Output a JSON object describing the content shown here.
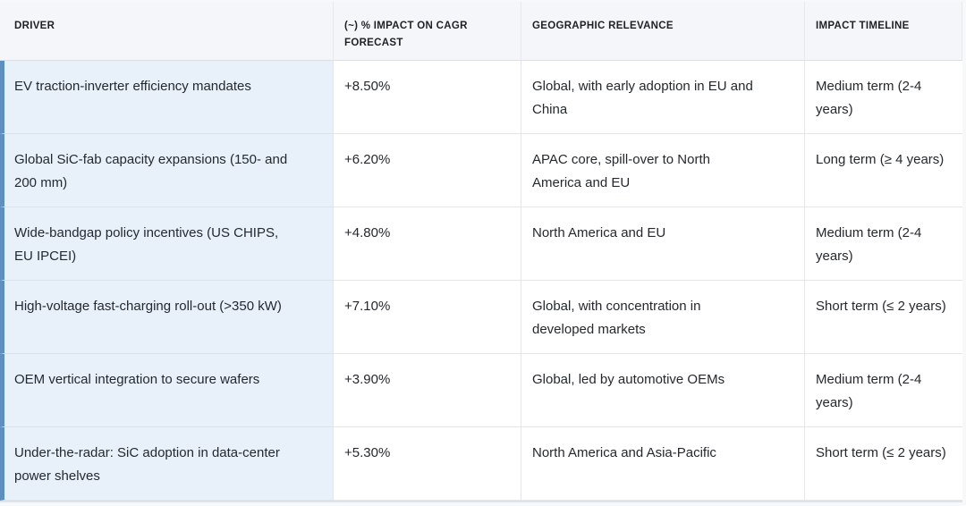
{
  "colors": {
    "page_background": "#f7f8fa",
    "header_background": "#f5f6f9",
    "row_accent_stripe": "#5d8fc0",
    "driver_cell_background": "#e8f1fa",
    "border": "#e3e7ed",
    "text": "#24292e"
  },
  "chart_data": {
    "type": "table",
    "columns": [
      "DRIVER",
      "(~) % IMPACT ON CAGR FORECAST",
      "GEOGRAPHIC RELEVANCE",
      "IMPACT TIMELINE"
    ],
    "rows": [
      [
        "EV traction-inverter efficiency mandates",
        "+8.50%",
        "Global, with early adoption in EU and China",
        "Medium term (2-4 years)"
      ],
      [
        "Global SiC-fab capacity expansions (150- and 200 mm)",
        "+6.20%",
        "APAC core, spill-over to North America and EU",
        "Long term (≥ 4 years)"
      ],
      [
        "Wide-bandgap policy incentives (US CHIPS, EU IPCEI)",
        "+4.80%",
        "North America and EU",
        "Medium term (2-4 years)"
      ],
      [
        "High-voltage fast-charging roll-out (>350 kW)",
        "+7.10%",
        "Global, with concentration in developed markets",
        "Short term (≤ 2 years)"
      ],
      [
        "OEM vertical integration to secure wafers",
        "+3.90%",
        "Global, led by automotive OEMs",
        "Medium term (2-4 years)"
      ],
      [
        "Under-the-radar: SiC adoption in data-center power shelves",
        "+5.30%",
        "North America and Asia-Pacific",
        "Short term (≤ 2 years)"
      ]
    ],
    "impact_values_percent": [
      8.5,
      6.2,
      4.8,
      7.1,
      3.9,
      5.3
    ]
  }
}
